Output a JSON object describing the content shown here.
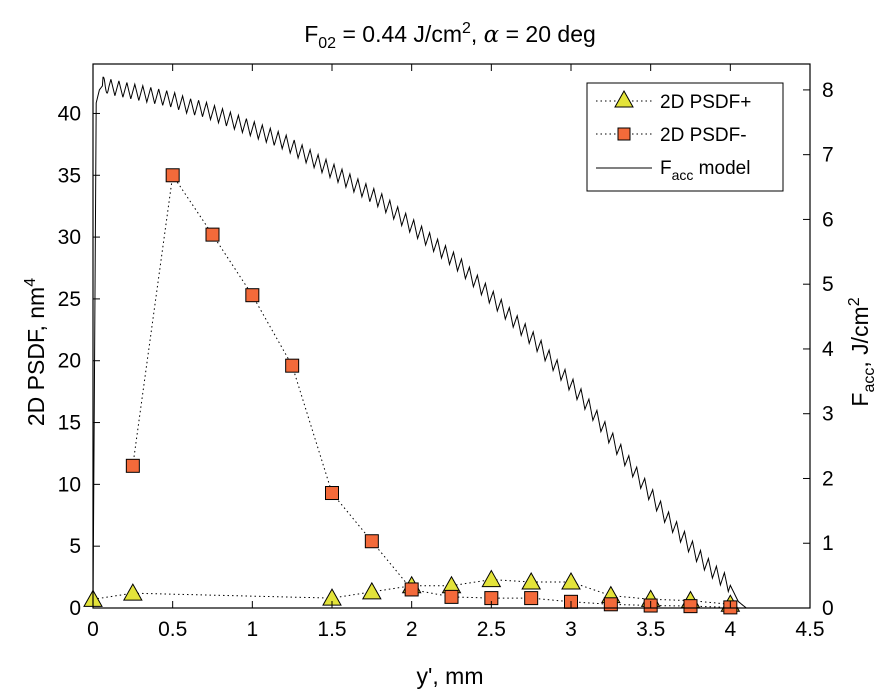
{
  "chart_data": {
    "type": "line",
    "title": {
      "main": "F",
      "main_sub": "02",
      "mid": " = 0.44 J/cm",
      "mid_sup": "2",
      "sep": ", ",
      "alpha": "α",
      "tail": " = 20 deg"
    },
    "xlabel": "y', mm",
    "ylabel_left": {
      "text": "2D PSDF, nm",
      "sup": "4"
    },
    "ylabel_right": {
      "main": "F",
      "sub": "acc",
      "mid": ", J/cm",
      "sup": "2"
    },
    "xlim": [
      0,
      4.5
    ],
    "ylim_left": [
      0,
      44
    ],
    "ylim_right": [
      0,
      8.4
    ],
    "x_ticks": [
      "0",
      "0.5",
      "1",
      "1.5",
      "2",
      "2.5",
      "3",
      "3.5",
      "4",
      "4.5"
    ],
    "y_ticks_left": [
      "0",
      "5",
      "10",
      "15",
      "20",
      "25",
      "30",
      "35",
      "40"
    ],
    "y_ticks_right": [
      "0",
      "1",
      "2",
      "3",
      "4",
      "5",
      "6",
      "7",
      "8"
    ],
    "grid": false,
    "legend_position": "top-right",
    "legend": [
      {
        "label": "2D PSDF+"
      },
      {
        "label": "2D PSDF-"
      },
      {
        "label_main": "F",
        "label_sub": "acc",
        "label_tail": " model"
      }
    ],
    "series": [
      {
        "name": "2D PSDF+",
        "axis": "left",
        "marker": "triangle",
        "color": "#e3e33a",
        "line": "dotted",
        "x": [
          0,
          0.25,
          1.5,
          1.75,
          2.0,
          2.25,
          2.5,
          2.75,
          3.0,
          3.25,
          3.5,
          3.75,
          4.0
        ],
        "y": [
          0.7,
          1.2,
          0.8,
          1.3,
          1.8,
          1.8,
          2.3,
          2.1,
          2.1,
          1.0,
          0.7,
          0.6,
          0.3
        ]
      },
      {
        "name": "2D PSDF-",
        "axis": "left",
        "marker": "square",
        "color": "#f36a3a",
        "line": "dotted",
        "x": [
          0.25,
          0.5,
          0.75,
          1.0,
          1.25,
          1.5,
          1.75,
          2.0,
          2.25,
          2.5,
          2.75,
          3.0,
          3.25,
          3.5,
          3.75,
          4.0
        ],
        "y": [
          11.5,
          35,
          30.2,
          25.3,
          19.6,
          9.3,
          5.4,
          1.5,
          0.9,
          0.8,
          0.8,
          0.5,
          0.3,
          0.2,
          0.15,
          0.05
        ]
      },
      {
        "name": "Facc model",
        "axis": "right",
        "line": "solid",
        "color": "#000000",
        "x": [
          0,
          0.02,
          0.04,
          0.07,
          0.1,
          0.2,
          0.3,
          0.4,
          0.5,
          0.6,
          0.7,
          0.8,
          0.9,
          1.0,
          1.1,
          1.2,
          1.3,
          1.4,
          1.5,
          1.6,
          1.7,
          1.8,
          1.9,
          2.0,
          2.1,
          2.2,
          2.3,
          2.4,
          2.5,
          2.6,
          2.7,
          2.8,
          2.9,
          3.0,
          3.1,
          3.2,
          3.3,
          3.4,
          3.5,
          3.6,
          3.7,
          3.8,
          3.9,
          4.0,
          4.05,
          4.1
        ],
        "y": [
          0,
          7.8,
          8.0,
          8.1,
          8.05,
          8.0,
          7.95,
          7.9,
          7.85,
          7.75,
          7.7,
          7.6,
          7.5,
          7.4,
          7.3,
          7.2,
          7.05,
          6.9,
          6.75,
          6.6,
          6.45,
          6.3,
          6.1,
          5.9,
          5.7,
          5.5,
          5.3,
          5.05,
          4.8,
          4.55,
          4.3,
          4.05,
          3.75,
          3.45,
          3.15,
          2.8,
          2.45,
          2.1,
          1.75,
          1.4,
          1.1,
          0.8,
          0.55,
          0.35,
          0.1,
          0.0
        ]
      }
    ]
  }
}
